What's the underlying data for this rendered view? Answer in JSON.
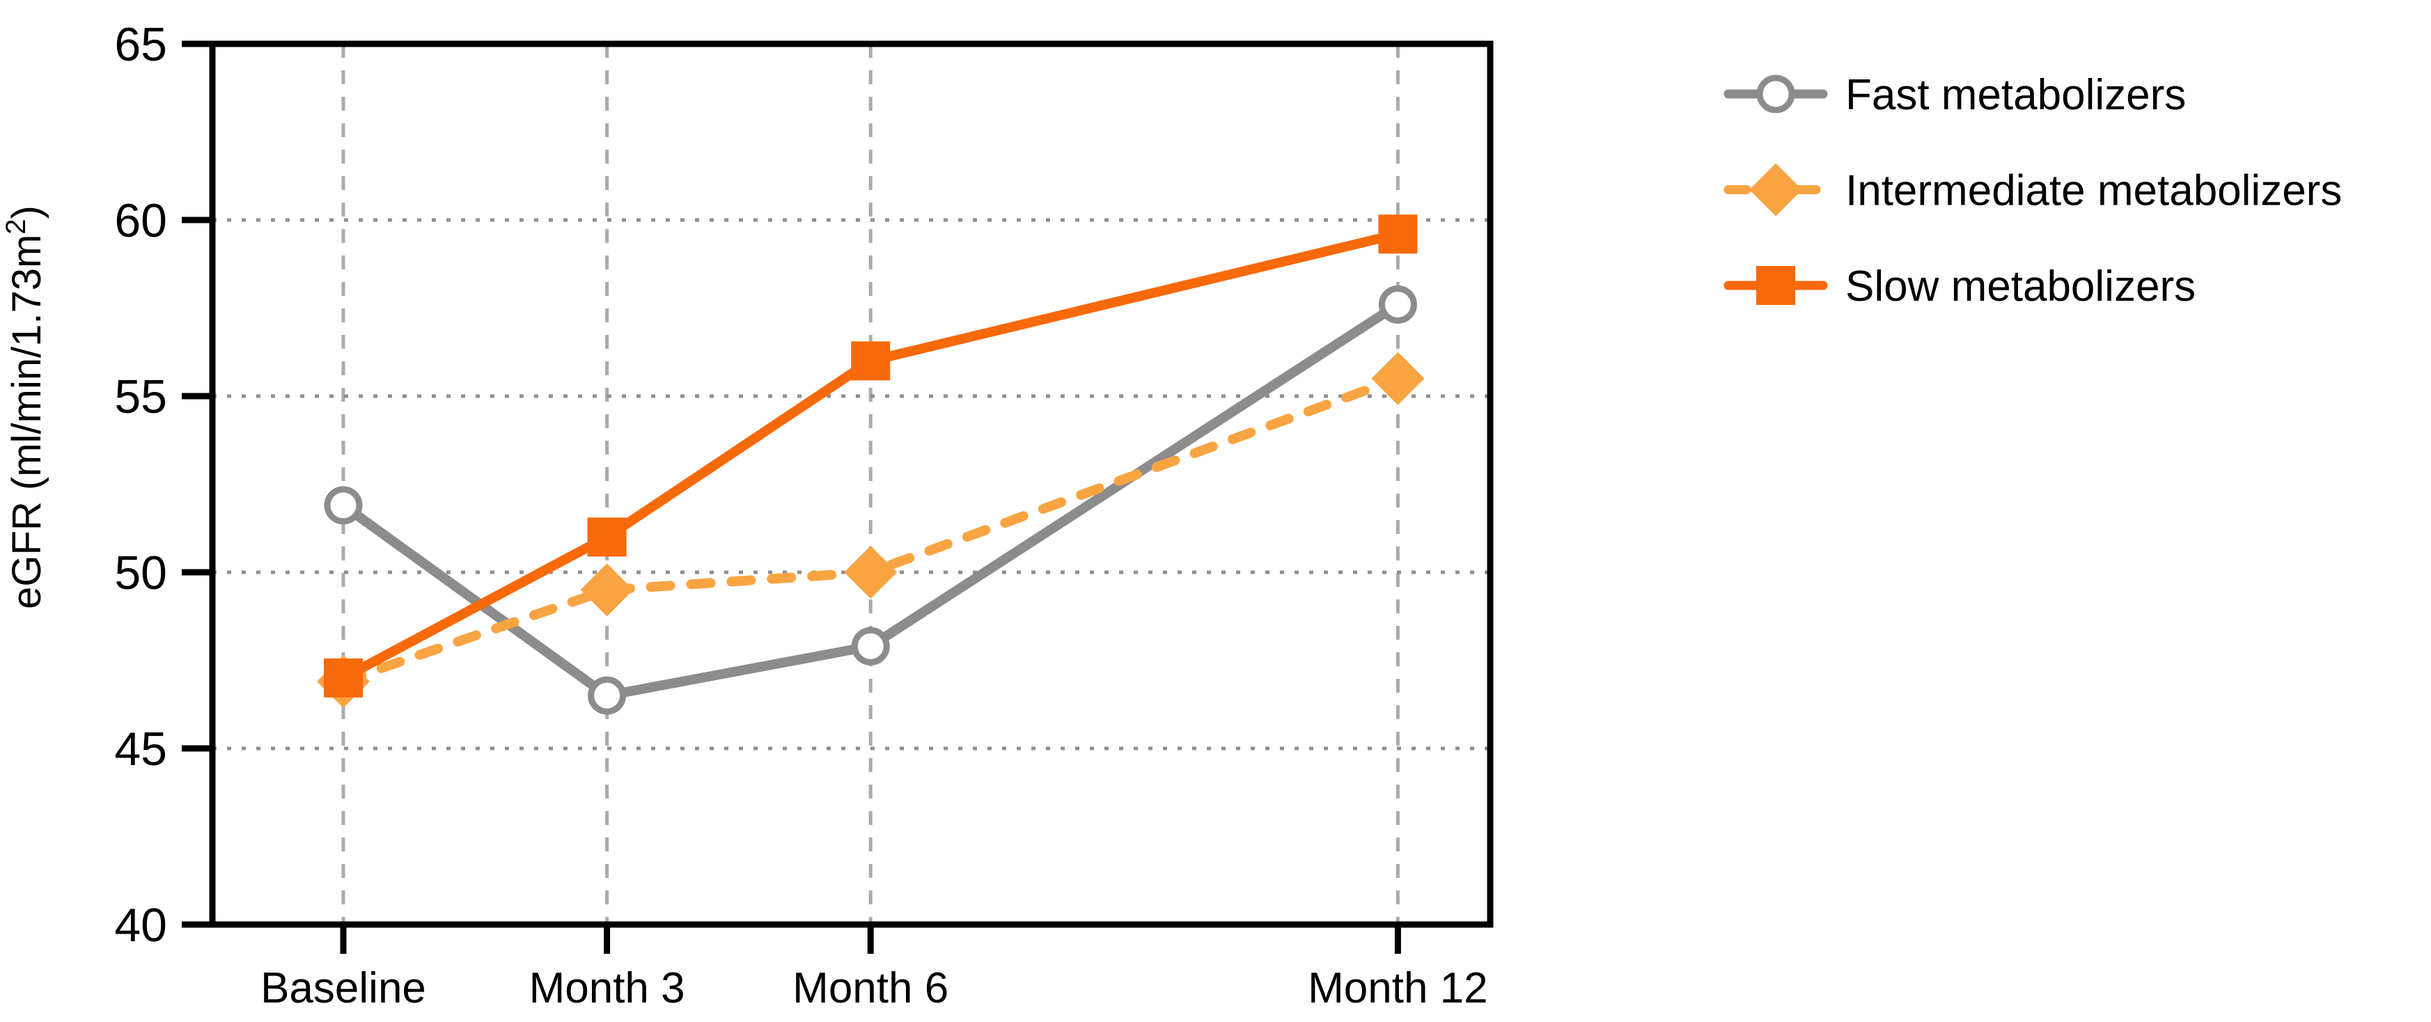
{
  "chart_data": {
    "type": "line",
    "title": "",
    "xlabel": "",
    "ylabel": "eGFR (ml/min/1.73m²)",
    "ylabel_parts": {
      "base": "eGFR (ml/min/1.73m",
      "sup": "2",
      "close": ")"
    },
    "categories": [
      "Baseline",
      "Month 3",
      "Month 6",
      "Month 12"
    ],
    "x_months": [
      0,
      3,
      6,
      12
    ],
    "x_axis_scale": "time-proportional",
    "ylim": [
      40,
      65
    ],
    "yticks": [
      40,
      45,
      50,
      55,
      60,
      65
    ],
    "grid": {
      "horizontal_dotted_at": [
        45,
        50,
        55,
        60
      ],
      "vertical_dashed_at_categories": true,
      "gridline_color": "#9A9A9A"
    },
    "frame_color": "#000000",
    "legend_position": "right-top",
    "series": [
      {
        "name": "Fast metabolizers",
        "color": "#8C8C8C",
        "marker": "circle-open",
        "marker_fill": "#ffffff",
        "line": "solid",
        "values": [
          51.9,
          46.5,
          47.9,
          57.6
        ]
      },
      {
        "name": "Intermediate metabolizers",
        "color": "#F9A442",
        "marker": "diamond",
        "marker_fill": "#F9A442",
        "line": "dashed",
        "values": [
          46.9,
          49.5,
          50.0,
          55.5
        ]
      },
      {
        "name": "Slow metabolizers",
        "color": "#F8690A",
        "marker": "square",
        "marker_fill": "#F8690A",
        "line": "solid",
        "values": [
          47.0,
          51.0,
          56.0,
          59.6
        ]
      }
    ]
  }
}
